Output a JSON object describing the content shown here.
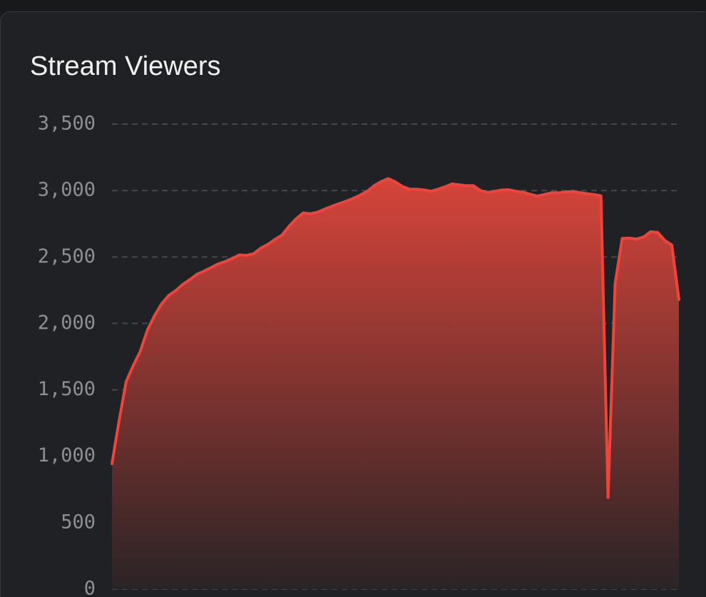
{
  "chart_data": {
    "type": "area",
    "title": "Stream Viewers",
    "values": [
      944,
      1266,
      1561,
      1683,
      1790,
      1950,
      2058,
      2147,
      2210,
      2247,
      2294,
      2330,
      2370,
      2394,
      2421,
      2448,
      2466,
      2490,
      2516,
      2512,
      2525,
      2567,
      2595,
      2632,
      2665,
      2732,
      2788,
      2832,
      2825,
      2837,
      2860,
      2881,
      2901,
      2919,
      2940,
      2965,
      2994,
      3037,
      3068,
      3090,
      3065,
      3030,
      3010,
      3010,
      3005,
      2995,
      3010,
      3028,
      3050,
      3043,
      3037,
      3037,
      3000,
      2986,
      2994,
      3004,
      3006,
      2995,
      2987,
      2972,
      2958,
      2970,
      2983,
      2983,
      2989,
      2993,
      2985,
      2977,
      2970,
      2960,
      690,
      2300,
      2640,
      2642,
      2635,
      2650,
      2690,
      2685,
      2625,
      2590,
      2180
    ],
    "color": "#f0443a",
    "ylim": [
      0,
      3500
    ],
    "yticks": [
      0,
      500,
      {
        "value": 1000,
        "label": "1,000"
      },
      {
        "value": 1500,
        "label": "1,500"
      },
      {
        "value": 2000,
        "label": "2,000"
      },
      {
        "value": 2500,
        "label": "2,500"
      },
      {
        "value": 3000,
        "label": "3,000"
      },
      {
        "value": 3500,
        "label": "3,500"
      }
    ],
    "grid": true
  }
}
